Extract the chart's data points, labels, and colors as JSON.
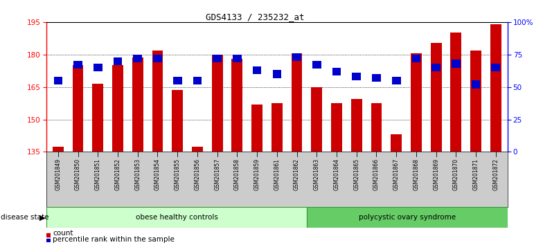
{
  "title": "GDS4133 / 235232_at",
  "samples": [
    "GSM201849",
    "GSM201850",
    "GSM201851",
    "GSM201852",
    "GSM201853",
    "GSM201854",
    "GSM201855",
    "GSM201856",
    "GSM201857",
    "GSM201858",
    "GSM201859",
    "GSM201861",
    "GSM201862",
    "GSM201863",
    "GSM201864",
    "GSM201865",
    "GSM201866",
    "GSM201867",
    "GSM201868",
    "GSM201869",
    "GSM201870",
    "GSM201871",
    "GSM201872"
  ],
  "counts": [
    137.5,
    175.0,
    166.5,
    175.0,
    178.5,
    182.0,
    163.5,
    137.5,
    180.0,
    178.0,
    157.0,
    157.5,
    180.5,
    165.0,
    157.5,
    159.5,
    157.5,
    143.0,
    180.5,
    185.5,
    190.0,
    182.0,
    194.0
  ],
  "percentiles_pct": [
    55,
    67,
    65,
    70,
    72,
    72,
    55,
    55,
    72,
    72,
    63,
    60,
    73,
    67,
    62,
    58,
    57,
    55,
    72,
    65,
    68,
    52,
    65
  ],
  "group1_label": "obese healthy controls",
  "group2_label": "polycystic ovary syndrome",
  "group1_count": 13,
  "group2_count": 10,
  "ymin": 135,
  "ymax": 195,
  "yticks_left": [
    135,
    150,
    165,
    180,
    195
  ],
  "yticks_right": [
    0,
    25,
    50,
    75,
    100
  ],
  "ytick_labels_right": [
    "0",
    "25",
    "50",
    "75",
    "100%"
  ],
  "bar_color": "#CC0000",
  "dot_color": "#0000CC",
  "group1_bg": "#CCFFCC",
  "group2_bg": "#66CC66",
  "group_border": "#339933",
  "xtick_bg": "#CCCCCC",
  "legend_count_label": "count",
  "legend_pct_label": "percentile rank within the sample",
  "disease_state_label": "disease state"
}
